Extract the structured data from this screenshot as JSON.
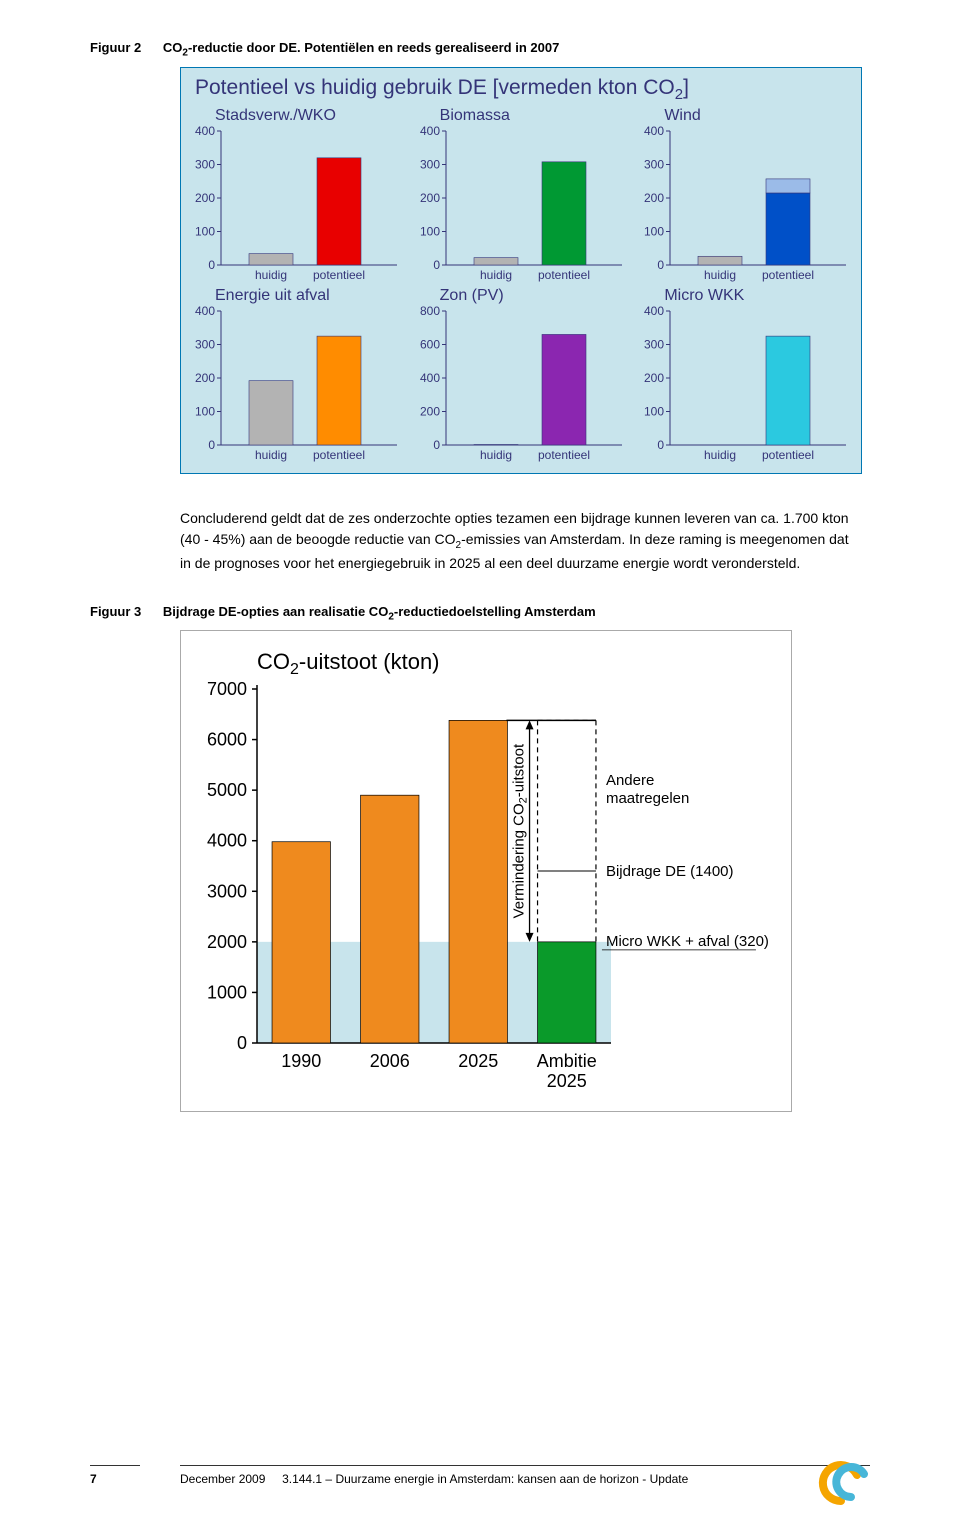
{
  "figure2": {
    "prefix": "Figuur 2",
    "caption_a": "CO",
    "caption_b": "-reductie door DE. Potentiëlen en reeds gerealiseerd in 2007",
    "title_a": "Potentieel vs huidig gebruik DE  [vermeden kton CO",
    "title_b": "]",
    "box_bg": "#c8e4ec",
    "border": "#0077b3",
    "ink": "#343478",
    "huidig_color": "#b3b3b3",
    "xlabels": [
      "huidig",
      "potentieel"
    ],
    "subcharts": [
      {
        "title": "Stadsverw./WKO",
        "ymax": 400,
        "ticks": [
          0,
          100,
          200,
          300,
          400
        ],
        "huidig": 34,
        "potentieel": 320,
        "color": "#e80000"
      },
      {
        "title": "Biomassa",
        "ymax": 400,
        "ticks": [
          0,
          100,
          200,
          300,
          400
        ],
        "huidig": 22,
        "potentieel": 308,
        "color": "#009933"
      },
      {
        "title": "Wind",
        "ymax": 400,
        "ticks": [
          0,
          100,
          200,
          300,
          400
        ],
        "huidig": 26,
        "potentieel": 215,
        "pot_extra": 42,
        "color": "#0050c8",
        "color_light": "#9bbbe8"
      },
      {
        "title": "Energie uit afval",
        "ymax": 400,
        "ticks": [
          0,
          100,
          200,
          300,
          400
        ],
        "huidig": 192,
        "potentieel": 325,
        "color": "#ff8c00"
      },
      {
        "title": "Zon (PV)",
        "ymax": 800,
        "ticks": [
          0,
          200,
          400,
          600,
          800
        ],
        "huidig": 3,
        "potentieel": 660,
        "color": "#8b26b0"
      },
      {
        "title": "Micro WKK",
        "ymax": 400,
        "ticks": [
          0,
          100,
          200,
          300,
          400
        ],
        "huidig": 0,
        "potentieel": 325,
        "color": "#2bc9e0"
      }
    ]
  },
  "paragraph_a": "Concluderend geldt dat de zes onderzochte opties tezamen een bijdrage kunnen leveren van ca. 1.700 kton (40 - 45%) aan de beoogde reductie van CO",
  "paragraph_b": "-emissies van Amsterdam. In deze raming is meegenomen dat in de prognoses voor het energiegebruik in 2025 al een deel duurzame energie wordt verondersteld.",
  "figure3": {
    "prefix": "Figuur 3",
    "caption_a": "Bijdrage DE-opties aan realisatie CO",
    "caption_b": "-reductiedoelstelling Amsterdam",
    "title_a": "CO",
    "title_b": "-uitstoot (kton)",
    "yticks": [
      0,
      1000,
      2000,
      3000,
      4000,
      5000,
      6000,
      7000
    ],
    "xlabels": [
      "1990",
      "2006",
      "2025",
      "Ambitie 2025"
    ],
    "band_color": "#c8e4ec",
    "orange": "#ef8a1e",
    "green": "#0a9a2a",
    "bars": [
      3980,
      4900,
      6380
    ],
    "ambitie_base": 2000,
    "annotations": {
      "andere": "Andere maatregelen",
      "bijdrage": "Bijdrage DE (1400)",
      "micro": "Micro WKK + afval (320)",
      "vermind_a": "Vermindering CO",
      "vermind_b": "-uitstoot"
    }
  },
  "footer": {
    "pagenum": "7",
    "date": "December 2009",
    "ref": "3.144.1 – Duurzame energie in Amsterdam: kansen aan de horizon - Update"
  }
}
